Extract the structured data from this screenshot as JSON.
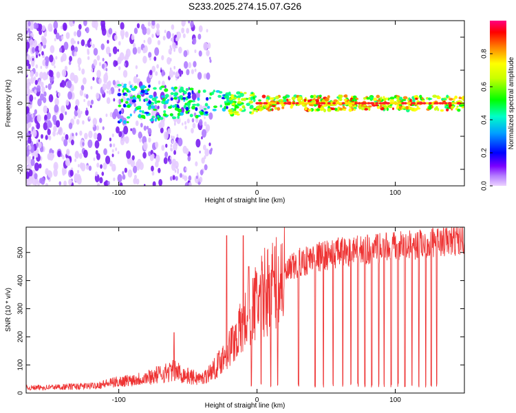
{
  "title": "S233.2025.274.15.07.G26",
  "chart_data": [
    {
      "type": "heatmap",
      "name": "spectrogram",
      "xlabel": "Height of straight line (km)",
      "ylabel": "Frequency (Hz)",
      "xlim": [
        -167,
        150
      ],
      "ylim": [
        -25,
        25
      ],
      "xticks": [
        -100,
        0,
        100
      ],
      "yticks": [
        -20,
        -10,
        0,
        10,
        20
      ],
      "description_series": [
        {
          "name": "scatter noise (low amplitude)",
          "x_range": [
            -167,
            -40
          ],
          "y_range": [
            -25,
            25
          ],
          "amplitude": 0.1
        },
        {
          "name": "central line ridge",
          "x_range": [
            -100,
            150
          ],
          "y_center": 0,
          "amplitude_peak": 1.0
        }
      ],
      "colorbar": {
        "label": "Normalized spectral amplitude",
        "range": [
          0.0,
          1.0
        ],
        "ticks": [
          "0.0",
          "0.2",
          "0.4",
          "0.6",
          "0.8"
        ],
        "colors": [
          "#e8c8ff",
          "#7a00ff",
          "#0000ff",
          "#00c8ff",
          "#00ff80",
          "#00ff00",
          "#c8ff00",
          "#ffff00",
          "#ff8000",
          "#ff0000",
          "#ff0080"
        ]
      }
    },
    {
      "type": "line",
      "name": "snr",
      "xlabel": "Height of straight line (km)",
      "ylabel": "SNR (10 * v/v)",
      "xlim": [
        -167,
        150
      ],
      "ylim": [
        0,
        590
      ],
      "xticks": [
        -100,
        0,
        100
      ],
      "yticks": [
        0,
        100,
        200,
        300,
        400,
        500
      ],
      "color": "#ee3333",
      "envelope": {
        "x": [
          -167,
          -140,
          -120,
          -100,
          -80,
          -60,
          -50,
          -40,
          -30,
          -20,
          -10,
          0,
          10,
          20,
          30,
          40,
          60,
          80,
          100,
          120,
          150
        ],
        "y": [
          18,
          22,
          25,
          40,
          55,
          80,
          60,
          50,
          90,
          160,
          240,
          330,
          380,
          420,
          460,
          480,
          500,
          510,
          520,
          530,
          545
        ]
      },
      "spikes": [
        {
          "x": -60,
          "y": 215
        },
        {
          "x": -22,
          "y": 560
        },
        {
          "x": -10,
          "y": 560
        },
        {
          "x": -6,
          "y": 450
        }
      ],
      "dropouts_x": [
        -4,
        3,
        10,
        15,
        30,
        42,
        48,
        55,
        62,
        68,
        73,
        78,
        83,
        88,
        92,
        97,
        102,
        107,
        112,
        117,
        122,
        126,
        130
      ]
    }
  ]
}
